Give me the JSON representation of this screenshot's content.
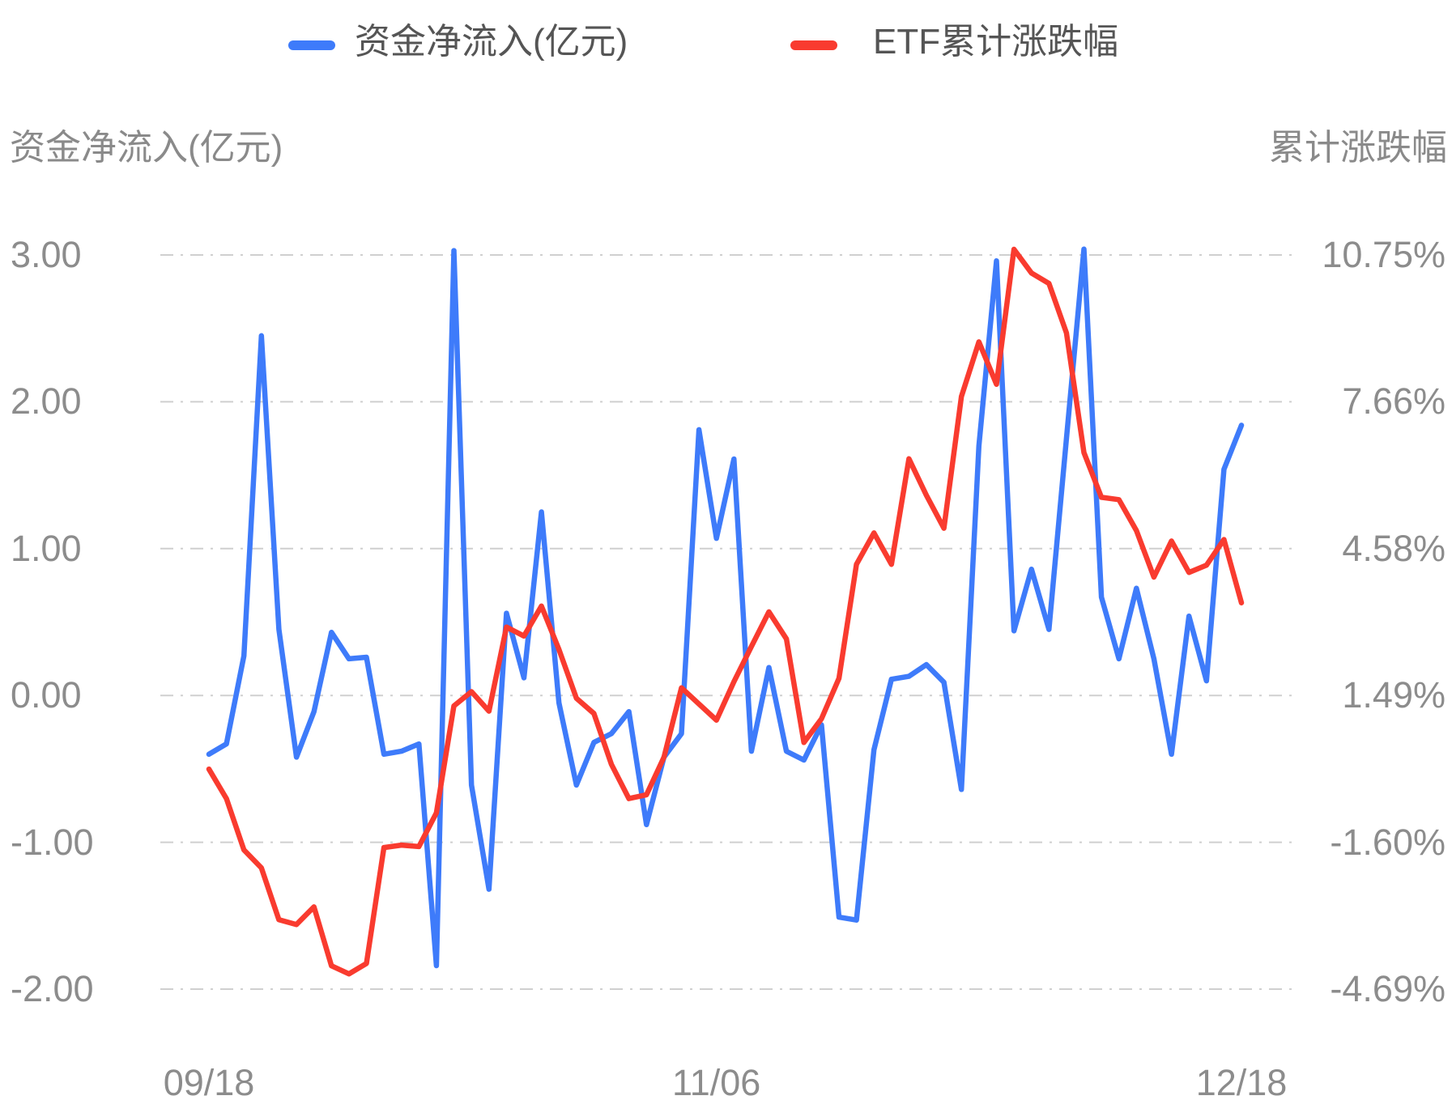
{
  "legend": {
    "series": [
      {
        "label": "资金净流入(亿元)",
        "color": "#3e7bfa"
      },
      {
        "label": "ETF累计涨跌幅",
        "color": "#f93b2f"
      }
    ]
  },
  "axes": {
    "left_title": "资金净流入(亿元)",
    "right_title": "累计涨跌幅",
    "left_ticks": [
      "3.00",
      "2.00",
      "1.00",
      "0.00",
      "-1.00",
      "-2.00"
    ],
    "right_ticks": [
      "10.75%",
      "7.66%",
      "4.58%",
      "1.49%",
      "-1.60%",
      "-4.69%"
    ],
    "x_ticks": [
      {
        "label": "09/18",
        "index": 0
      },
      {
        "label": "11/06",
        "index": 29
      },
      {
        "label": "12/18",
        "index": 59
      }
    ]
  },
  "chart_data": {
    "type": "line",
    "title": "",
    "grid": true,
    "legend_position": "top",
    "x": {
      "first_label": "09/18",
      "middle_label": "11/06",
      "last_label": "12/18",
      "points": 60
    },
    "left_axis": {
      "title": "资金净流入(亿元)",
      "ticks": [
        3.0,
        2.0,
        1.0,
        0.0,
        -1.0,
        -2.0
      ]
    },
    "right_axis": {
      "title": "累计涨跌幅",
      "unit": "%",
      "ticks": [
        10.75,
        7.66,
        4.58,
        1.49,
        -1.6,
        -4.69
      ]
    },
    "series": [
      {
        "name": "资金净流入(亿元)",
        "axis": "left",
        "color": "#3e7bfa",
        "values": [
          -0.4,
          -0.33,
          0.27,
          2.45,
          0.45,
          -0.42,
          -0.11,
          0.43,
          0.25,
          0.26,
          -0.4,
          -0.38,
          -0.33,
          -1.84,
          3.03,
          -0.61,
          -1.32,
          0.56,
          0.12,
          1.25,
          -0.05,
          -0.61,
          -0.32,
          -0.26,
          -0.11,
          -0.88,
          -0.42,
          -0.26,
          1.81,
          1.07,
          1.61,
          -0.38,
          0.19,
          -0.38,
          -0.44,
          -0.2,
          -1.51,
          -1.53,
          -0.37,
          0.11,
          0.13,
          0.21,
          0.09,
          -0.64,
          1.7,
          2.96,
          0.44,
          0.86,
          0.45,
          1.75,
          3.04,
          0.67,
          0.25,
          0.73,
          0.25,
          -0.4,
          0.54,
          0.1,
          1.54,
          1.84
        ]
      },
      {
        "name": "ETF累计涨跌幅",
        "axis": "right",
        "color": "#f93b2f",
        "values": [
          -0.06,
          -0.68,
          -1.76,
          -2.14,
          -3.23,
          -3.33,
          -2.96,
          -4.2,
          -4.37,
          -4.15,
          -1.71,
          -1.66,
          -1.69,
          -0.98,
          1.27,
          1.57,
          1.16,
          2.93,
          2.74,
          3.37,
          2.46,
          1.43,
          1.11,
          0.04,
          -0.68,
          -0.6,
          0.19,
          1.65,
          1.31,
          0.97,
          1.78,
          2.52,
          3.25,
          2.68,
          0.5,
          1.0,
          1.85,
          4.25,
          4.91,
          4.25,
          6.47,
          5.7,
          5.01,
          7.78,
          8.93,
          8.04,
          10.88,
          10.38,
          10.16,
          9.12,
          6.6,
          5.66,
          5.61,
          4.96,
          3.98,
          4.74,
          4.08,
          4.23,
          4.77,
          3.44
        ]
      }
    ]
  }
}
